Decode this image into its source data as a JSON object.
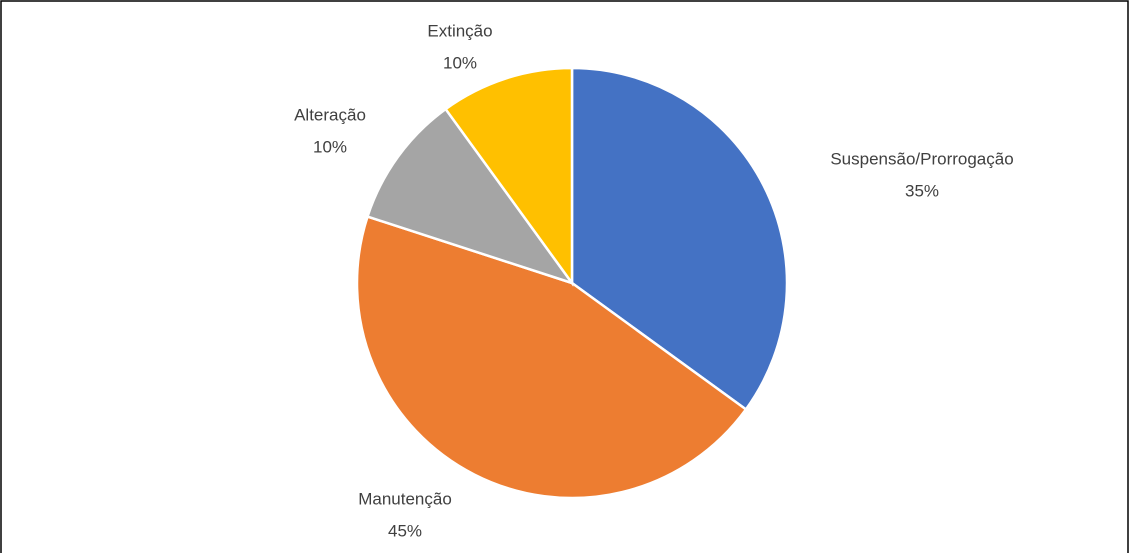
{
  "chart_data": {
    "type": "pie",
    "categories": [
      "Suspensão/Prorrogação",
      "Manutenção",
      "Alteração",
      "Extinção"
    ],
    "values": [
      35,
      45,
      10,
      10
    ],
    "value_labels": [
      "35%",
      "45%",
      "10%",
      "10%"
    ],
    "colors": [
      "#4472c4",
      "#ed7d31",
      "#a5a5a5",
      "#ffc000"
    ]
  }
}
